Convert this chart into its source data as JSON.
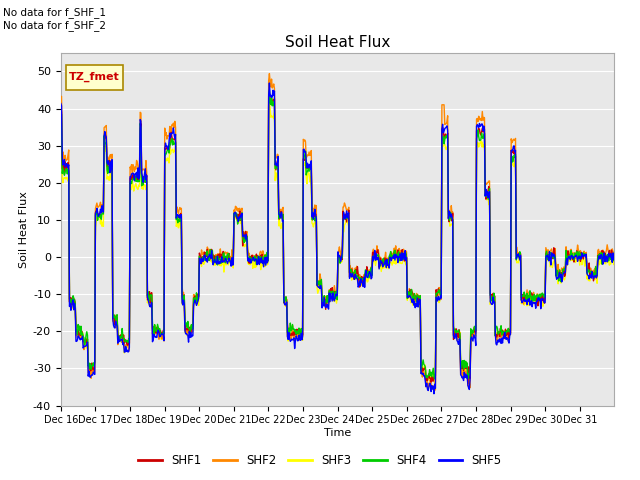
{
  "title": "Soil Heat Flux",
  "ylabel": "Soil Heat Flux",
  "xlabel": "Time",
  "ylim": [
    -40,
    55
  ],
  "background_color": "#e8e8e8",
  "fig_background": "#ffffff",
  "text_no_data_1": "No data for f_SHF_1",
  "text_no_data_2": "No data for f_SHF_2",
  "legend_box_label": "TZ_fmet",
  "series_colors": {
    "SHF1": "#cc0000",
    "SHF2": "#ff8800",
    "SHF3": "#ffff00",
    "SHF4": "#00cc00",
    "SHF5": "#0000ff"
  },
  "xtick_labels": [
    "Dec 16",
    "Dec 17",
    "Dec 18",
    "Dec 19",
    "Dec 20",
    "Dec 21",
    "Dec 22",
    "Dec 23",
    "Dec 24",
    "Dec 25",
    "Dec 26",
    "Dec 27",
    "Dec 28",
    "Dec 29",
    "Dec 30",
    "Dec 31"
  ],
  "ytick_values": [
    -40,
    -30,
    -20,
    -10,
    0,
    10,
    20,
    30,
    40,
    50
  ],
  "grid_color": "#ffffff",
  "line_width": 1.0
}
